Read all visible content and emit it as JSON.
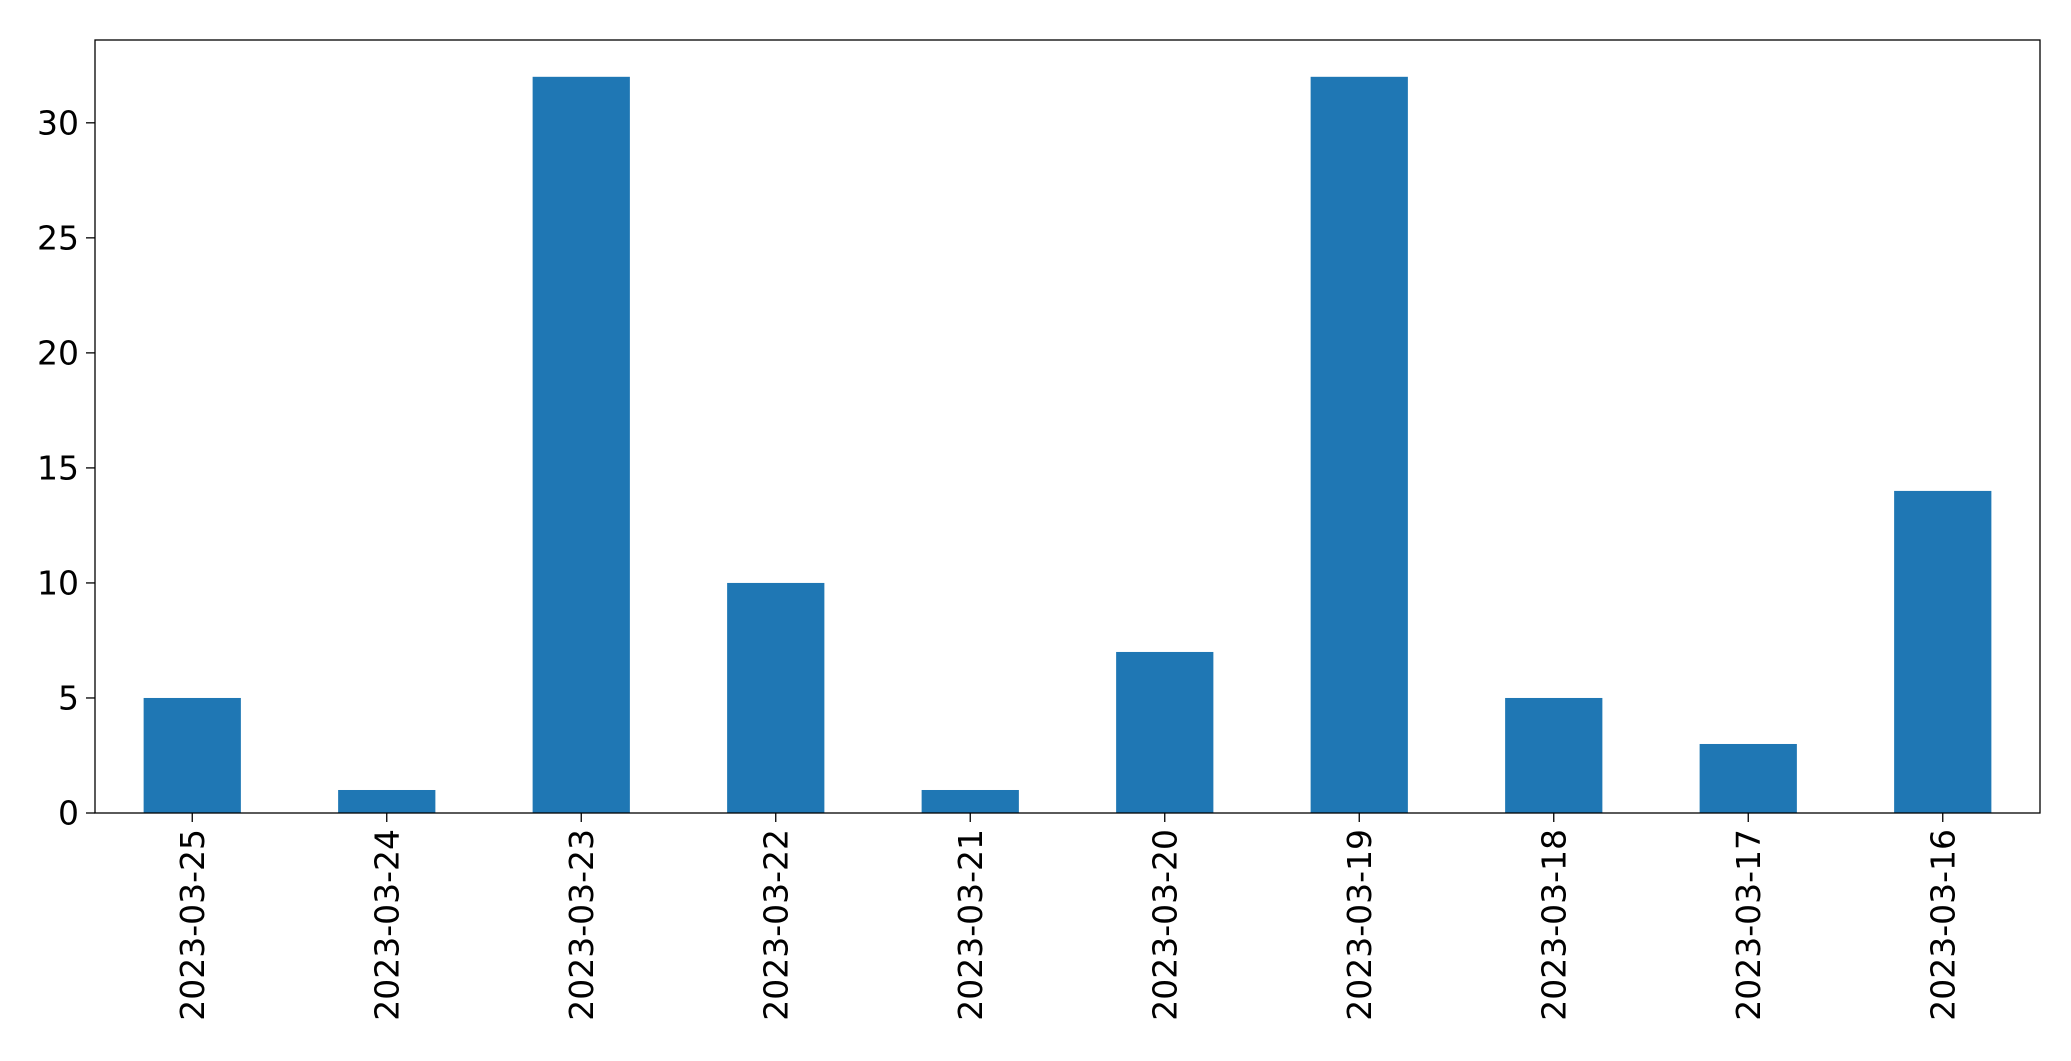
{
  "chart_data": {
    "type": "bar",
    "categories": [
      "2023-03-25",
      "2023-03-24",
      "2023-03-23",
      "2023-03-22",
      "2023-03-21",
      "2023-03-20",
      "2023-03-19",
      "2023-03-18",
      "2023-03-17",
      "2023-03-16"
    ],
    "values": [
      5,
      1,
      32,
      10,
      1,
      7,
      32,
      5,
      3,
      14
    ],
    "title": "",
    "xlabel": "",
    "ylabel": "",
    "ylim": [
      0,
      33.6
    ],
    "yticks": [
      0,
      5,
      10,
      15,
      20,
      25,
      30
    ],
    "grid": false,
    "legend": "none",
    "bar_color": "#1f77b4"
  }
}
